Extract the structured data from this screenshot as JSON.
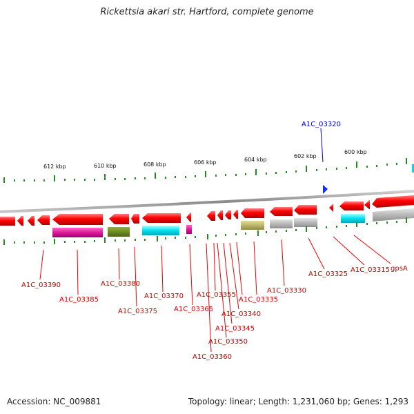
{
  "title": "Rickettsia akari str. Hartford, complete genome",
  "accession_text": "Accession: NC_009881",
  "summary_text": "Topology: linear; Length: 1,231,060 bp; Genes: 1,293",
  "scale_ticks": [
    "612 kbp",
    "610 kbp",
    "608 kbp",
    "606 kbp",
    "604 kbp",
    "602 kbp",
    "600 kbp"
  ],
  "top_gene_label": "A1C_03320",
  "bottom_gene_labels": [
    "A1C_03390",
    "A1C_03385",
    "A1C_03380",
    "A1C_03375",
    "A1C_03370",
    "A1C_03365",
    "A1C_03360",
    "A1C_03355",
    "A1C_03350",
    "A1C_03345",
    "A1C_03340",
    "A1C_03335",
    "A1C_03330",
    "A1C_03325",
    "A1C_03315",
    "gpsA"
  ],
  "colors": {
    "gene_forward": "#ee0000",
    "gene_reverse_label": "#cc0000",
    "top_label": "#0000cc",
    "backbone": "#888888",
    "tick": "#228b22",
    "cog_magenta": "#e0179a",
    "cog_olive": "#6b8e23",
    "cog_cyan": "#00d8e8",
    "cog_khaki": "#bdb76b",
    "cog_gray": "#b8b8b8"
  }
}
